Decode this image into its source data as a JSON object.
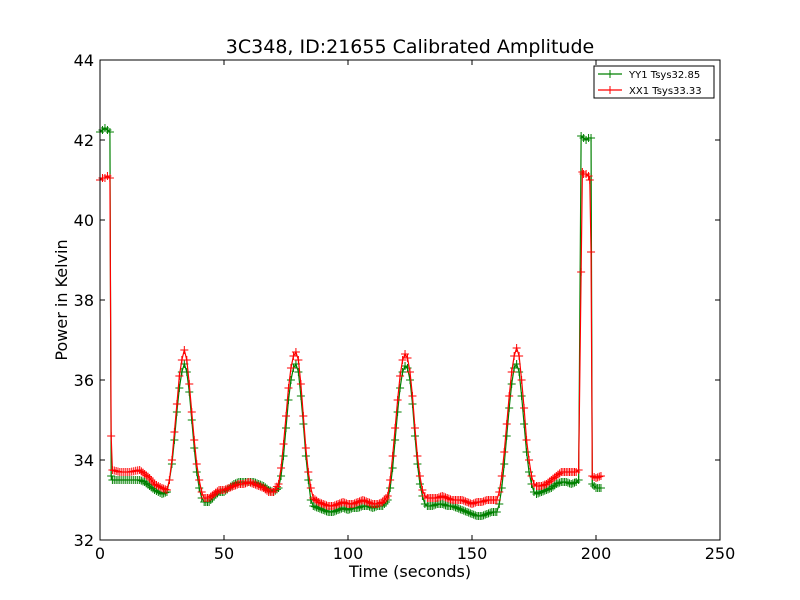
{
  "chart_data": {
    "type": "line",
    "title": "3C348, ID:21655 Calibrated Amplitude",
    "xlabel": "Time (seconds)",
    "ylabel": "Power in Kelvin",
    "xlim": [
      0,
      250
    ],
    "ylim": [
      32,
      44
    ],
    "xticks": [
      0,
      50,
      100,
      150,
      200,
      250
    ],
    "yticks": [
      32,
      34,
      36,
      38,
      40,
      42,
      44
    ],
    "grid": false,
    "legend_position": "top-right",
    "marker": "plus",
    "series": [
      {
        "name": "YY1 Tsys32.85",
        "color": "#008000",
        "points": [
          [
            0,
            42.2
          ],
          [
            1,
            42.25
          ],
          [
            2,
            42.3
          ],
          [
            3,
            42.25
          ],
          [
            4,
            42.2
          ],
          [
            4.5,
            33.6
          ],
          [
            5,
            33.5
          ],
          [
            8,
            33.5
          ],
          [
            12,
            33.5
          ],
          [
            16,
            33.5
          ],
          [
            18,
            33.45
          ],
          [
            20,
            33.35
          ],
          [
            22,
            33.25
          ],
          [
            25,
            33.15
          ],
          [
            27,
            33.2
          ],
          [
            28,
            33.5
          ],
          [
            29,
            33.9
          ],
          [
            30,
            34.5
          ],
          [
            31,
            35.2
          ],
          [
            32,
            35.8
          ],
          [
            33,
            36.2
          ],
          [
            34,
            36.4
          ],
          [
            35,
            36.2
          ],
          [
            36,
            35.7
          ],
          [
            37,
            35.0
          ],
          [
            38,
            34.3
          ],
          [
            39,
            33.7
          ],
          [
            40,
            33.3
          ],
          [
            41,
            33.05
          ],
          [
            42,
            32.95
          ],
          [
            44,
            32.95
          ],
          [
            46,
            33.1
          ],
          [
            48,
            33.2
          ],
          [
            50,
            33.2
          ],
          [
            52,
            33.3
          ],
          [
            54,
            33.4
          ],
          [
            56,
            33.45
          ],
          [
            58,
            33.45
          ],
          [
            60,
            33.45
          ],
          [
            62,
            33.45
          ],
          [
            64,
            33.4
          ],
          [
            66,
            33.35
          ],
          [
            68,
            33.25
          ],
          [
            70,
            33.2
          ],
          [
            72,
            33.3
          ],
          [
            73,
            33.6
          ],
          [
            74,
            34.1
          ],
          [
            75,
            34.8
          ],
          [
            76,
            35.5
          ],
          [
            77,
            36.0
          ],
          [
            78,
            36.3
          ],
          [
            79,
            36.4
          ],
          [
            80,
            36.2
          ],
          [
            81,
            35.6
          ],
          [
            82,
            34.9
          ],
          [
            83,
            34.1
          ],
          [
            84,
            33.5
          ],
          [
            85,
            33.0
          ],
          [
            86,
            32.85
          ],
          [
            88,
            32.8
          ],
          [
            90,
            32.75
          ],
          [
            92,
            32.7
          ],
          [
            94,
            32.7
          ],
          [
            96,
            32.75
          ],
          [
            98,
            32.8
          ],
          [
            100,
            32.75
          ],
          [
            102,
            32.8
          ],
          [
            104,
            32.8
          ],
          [
            106,
            32.85
          ],
          [
            108,
            32.85
          ],
          [
            110,
            32.8
          ],
          [
            112,
            32.85
          ],
          [
            114,
            32.85
          ],
          [
            116,
            33.0
          ],
          [
            117,
            33.3
          ],
          [
            118,
            33.8
          ],
          [
            119,
            34.5
          ],
          [
            120,
            35.2
          ],
          [
            121,
            35.8
          ],
          [
            122,
            36.2
          ],
          [
            123,
            36.35
          ],
          [
            124,
            36.3
          ],
          [
            125,
            36.0
          ],
          [
            126,
            35.4
          ],
          [
            127,
            34.6
          ],
          [
            128,
            33.9
          ],
          [
            129,
            33.4
          ],
          [
            130,
            33.1
          ],
          [
            131,
            32.9
          ],
          [
            132,
            32.85
          ],
          [
            134,
            32.85
          ],
          [
            136,
            32.9
          ],
          [
            138,
            32.9
          ],
          [
            140,
            32.85
          ],
          [
            142,
            32.85
          ],
          [
            144,
            32.8
          ],
          [
            146,
            32.75
          ],
          [
            148,
            32.7
          ],
          [
            150,
            32.65
          ],
          [
            152,
            32.6
          ],
          [
            154,
            32.6
          ],
          [
            156,
            32.65
          ],
          [
            158,
            32.7
          ],
          [
            160,
            32.7
          ],
          [
            161,
            32.9
          ],
          [
            162,
            33.3
          ],
          [
            163,
            33.9
          ],
          [
            164,
            34.6
          ],
          [
            165,
            35.3
          ],
          [
            166,
            35.9
          ],
          [
            167,
            36.3
          ],
          [
            168,
            36.4
          ],
          [
            169,
            36.2
          ],
          [
            170,
            35.6
          ],
          [
            171,
            34.9
          ],
          [
            172,
            34.2
          ],
          [
            173,
            33.7
          ],
          [
            174,
            33.4
          ],
          [
            175,
            33.2
          ],
          [
            176,
            33.15
          ],
          [
            178,
            33.2
          ],
          [
            180,
            33.25
          ],
          [
            182,
            33.3
          ],
          [
            184,
            33.4
          ],
          [
            186,
            33.45
          ],
          [
            188,
            33.45
          ],
          [
            190,
            33.4
          ],
          [
            192,
            33.45
          ],
          [
            193,
            33.5
          ],
          [
            194,
            42.1
          ],
          [
            195,
            42.05
          ],
          [
            196,
            42.0
          ],
          [
            197,
            42.05
          ],
          [
            198,
            42.05
          ],
          [
            198.5,
            33.4
          ],
          [
            200,
            33.3
          ],
          [
            202,
            33.3
          ]
        ]
      },
      {
        "name": "XX1 Tsys33.33",
        "color": "#ff0000",
        "points": [
          [
            0,
            41.0
          ],
          [
            1,
            41.05
          ],
          [
            2,
            41.05
          ],
          [
            3,
            41.1
          ],
          [
            4,
            41.05
          ],
          [
            4.5,
            34.6
          ],
          [
            5,
            33.75
          ],
          [
            8,
            33.7
          ],
          [
            12,
            33.7
          ],
          [
            16,
            33.75
          ],
          [
            18,
            33.65
          ],
          [
            20,
            33.55
          ],
          [
            22,
            33.4
          ],
          [
            25,
            33.3
          ],
          [
            27,
            33.25
          ],
          [
            28,
            33.5
          ],
          [
            29,
            34.0
          ],
          [
            30,
            34.7
          ],
          [
            31,
            35.4
          ],
          [
            32,
            36.1
          ],
          [
            33,
            36.5
          ],
          [
            34,
            36.75
          ],
          [
            35,
            36.5
          ],
          [
            36,
            35.9
          ],
          [
            37,
            35.2
          ],
          [
            38,
            34.5
          ],
          [
            39,
            33.9
          ],
          [
            40,
            33.5
          ],
          [
            41,
            33.2
          ],
          [
            42,
            33.05
          ],
          [
            44,
            33.05
          ],
          [
            46,
            33.15
          ],
          [
            48,
            33.25
          ],
          [
            50,
            33.25
          ],
          [
            52,
            33.3
          ],
          [
            54,
            33.35
          ],
          [
            56,
            33.4
          ],
          [
            58,
            33.4
          ],
          [
            60,
            33.45
          ],
          [
            62,
            33.4
          ],
          [
            64,
            33.35
          ],
          [
            66,
            33.3
          ],
          [
            68,
            33.2
          ],
          [
            70,
            33.2
          ],
          [
            72,
            33.4
          ],
          [
            73,
            33.8
          ],
          [
            74,
            34.4
          ],
          [
            75,
            35.1
          ],
          [
            76,
            35.8
          ],
          [
            77,
            36.3
          ],
          [
            78,
            36.6
          ],
          [
            79,
            36.7
          ],
          [
            80,
            36.5
          ],
          [
            81,
            35.9
          ],
          [
            82,
            35.1
          ],
          [
            83,
            34.3
          ],
          [
            84,
            33.7
          ],
          [
            85,
            33.3
          ],
          [
            86,
            33.05
          ],
          [
            88,
            32.95
          ],
          [
            90,
            32.9
          ],
          [
            92,
            32.85
          ],
          [
            94,
            32.85
          ],
          [
            96,
            32.9
          ],
          [
            98,
            32.95
          ],
          [
            100,
            32.9
          ],
          [
            102,
            32.9
          ],
          [
            104,
            32.95
          ],
          [
            106,
            33.0
          ],
          [
            108,
            32.95
          ],
          [
            110,
            32.9
          ],
          [
            112,
            32.9
          ],
          [
            114,
            32.95
          ],
          [
            116,
            33.1
          ],
          [
            117,
            33.5
          ],
          [
            118,
            34.1
          ],
          [
            119,
            34.8
          ],
          [
            120,
            35.5
          ],
          [
            121,
            36.1
          ],
          [
            122,
            36.5
          ],
          [
            123,
            36.65
          ],
          [
            124,
            36.55
          ],
          [
            125,
            36.2
          ],
          [
            126,
            35.6
          ],
          [
            127,
            34.8
          ],
          [
            128,
            34.1
          ],
          [
            129,
            33.6
          ],
          [
            130,
            33.25
          ],
          [
            131,
            33.1
          ],
          [
            132,
            33.05
          ],
          [
            134,
            33.05
          ],
          [
            136,
            33.05
          ],
          [
            138,
            33.1
          ],
          [
            140,
            33.05
          ],
          [
            142,
            33.0
          ],
          [
            144,
            33.0
          ],
          [
            146,
            33.0
          ],
          [
            148,
            32.95
          ],
          [
            150,
            32.9
          ],
          [
            152,
            32.95
          ],
          [
            154,
            32.95
          ],
          [
            156,
            33.0
          ],
          [
            158,
            33.0
          ],
          [
            160,
            33.0
          ],
          [
            161,
            33.2
          ],
          [
            162,
            33.6
          ],
          [
            163,
            34.2
          ],
          [
            164,
            34.9
          ],
          [
            165,
            35.6
          ],
          [
            166,
            36.2
          ],
          [
            167,
            36.6
          ],
          [
            168,
            36.8
          ],
          [
            169,
            36.6
          ],
          [
            170,
            36.0
          ],
          [
            171,
            35.3
          ],
          [
            172,
            34.5
          ],
          [
            173,
            34.0
          ],
          [
            174,
            33.6
          ],
          [
            175,
            33.4
          ],
          [
            176,
            33.35
          ],
          [
            178,
            33.35
          ],
          [
            180,
            33.4
          ],
          [
            182,
            33.5
          ],
          [
            184,
            33.6
          ],
          [
            186,
            33.7
          ],
          [
            188,
            33.7
          ],
          [
            190,
            33.7
          ],
          [
            192,
            33.7
          ],
          [
            193,
            33.75
          ],
          [
            194,
            38.7
          ],
          [
            194.5,
            41.2
          ],
          [
            195,
            41.15
          ],
          [
            196,
            41.15
          ],
          [
            197,
            41.1
          ],
          [
            197.5,
            41.0
          ],
          [
            198,
            39.2
          ],
          [
            198.5,
            33.6
          ],
          [
            200,
            33.55
          ],
          [
            202,
            33.6
          ]
        ]
      }
    ]
  }
}
